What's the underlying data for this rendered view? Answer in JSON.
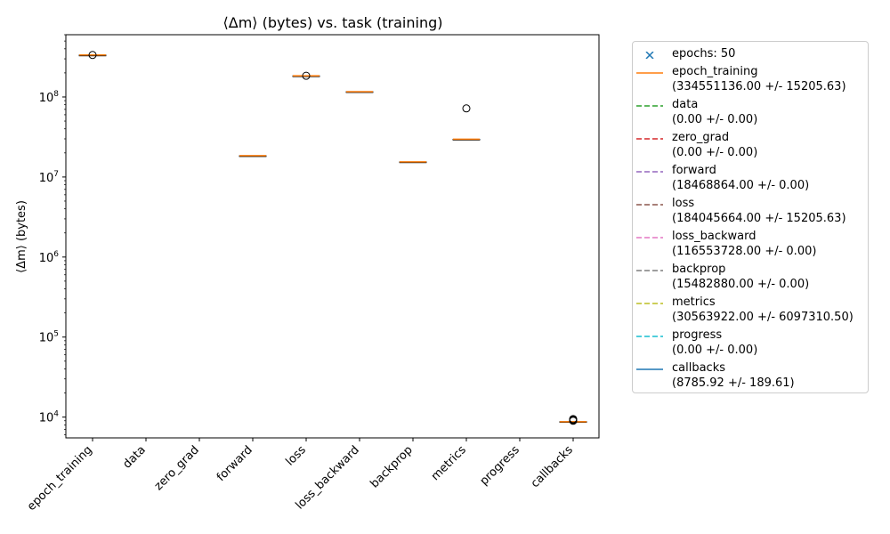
{
  "chart_data": {
    "type": "box",
    "title": "⟨Δm⟩ (bytes) vs. task (training)",
    "xlabel": "",
    "ylabel": "⟨Δm⟩ (bytes)",
    "yscale": "log",
    "ylim": [
      5500,
      600000000
    ],
    "yticks": [
      {
        "value": 10000,
        "base": "10",
        "exp": "4"
      },
      {
        "value": 100000,
        "base": "10",
        "exp": "5"
      },
      {
        "value": 1000000,
        "base": "10",
        "exp": "6"
      },
      {
        "value": 10000000,
        "base": "10",
        "exp": "7"
      },
      {
        "value": 100000000,
        "base": "10",
        "exp": "8"
      }
    ],
    "categories": [
      "epoch_training",
      "data",
      "zero_grad",
      "forward",
      "loss",
      "loss_backward",
      "backprop",
      "metrics",
      "progress",
      "callbacks"
    ],
    "boxes": [
      {
        "median": 334551136,
        "q1": 334540000,
        "q3": 334560000,
        "outliers": [
          334551136
        ]
      },
      null,
      null,
      {
        "median": 18468864,
        "q1": 18468864,
        "q3": 18468864,
        "outliers": []
      },
      {
        "median": 184045664,
        "q1": 184040000,
        "q3": 184050000,
        "outliers": [
          184045664
        ]
      },
      {
        "median": 116553728,
        "q1": 116553728,
        "q3": 116553728,
        "outliers": []
      },
      {
        "median": 15482880,
        "q1": 15482880,
        "q3": 15482880,
        "outliers": []
      },
      {
        "median": 29700000,
        "q1": 29700000,
        "q3": 29700000,
        "outliers": [
          72000000
        ]
      },
      null,
      {
        "median": 8750,
        "q1": 8700,
        "q3": 8800,
        "outliers": [
          9000,
          9150,
          9300,
          9450
        ]
      }
    ],
    "legend": {
      "placement": "outside-right",
      "entries": [
        {
          "label": "epochs: 50",
          "stats": "",
          "color": "#1f77b4",
          "style": "marker-x"
        },
        {
          "label": "epoch_training",
          "stats": "(334551136.00 +/- 15205.63)",
          "color": "#ff7f0e",
          "style": "solid"
        },
        {
          "label": "data",
          "stats": "(0.00 +/- 0.00)",
          "color": "#2ca02c",
          "style": "dashed"
        },
        {
          "label": "zero_grad",
          "stats": "(0.00 +/- 0.00)",
          "color": "#d62728",
          "style": "dashed"
        },
        {
          "label": "forward",
          "stats": "(18468864.00 +/- 0.00)",
          "color": "#9467bd",
          "style": "dashed"
        },
        {
          "label": "loss",
          "stats": "(184045664.00 +/- 15205.63)",
          "color": "#8c564b",
          "style": "dashed"
        },
        {
          "label": "loss_backward",
          "stats": "(116553728.00 +/- 0.00)",
          "color": "#e377c2",
          "style": "dashed"
        },
        {
          "label": "backprop",
          "stats": "(15482880.00 +/- 0.00)",
          "color": "#7f7f7f",
          "style": "dashed"
        },
        {
          "label": "metrics",
          "stats": "(30563922.00 +/- 6097310.50)",
          "color": "#bcbd22",
          "style": "dashed"
        },
        {
          "label": "progress",
          "stats": "(0.00 +/- 0.00)",
          "color": "#17becf",
          "style": "dashed"
        },
        {
          "label": "callbacks",
          "stats": "(8785.92 +/- 189.61)",
          "color": "#1f77b4",
          "style": "solid"
        }
      ]
    },
    "colors": {
      "median": "#ff7f0e",
      "box": "#000000"
    }
  }
}
